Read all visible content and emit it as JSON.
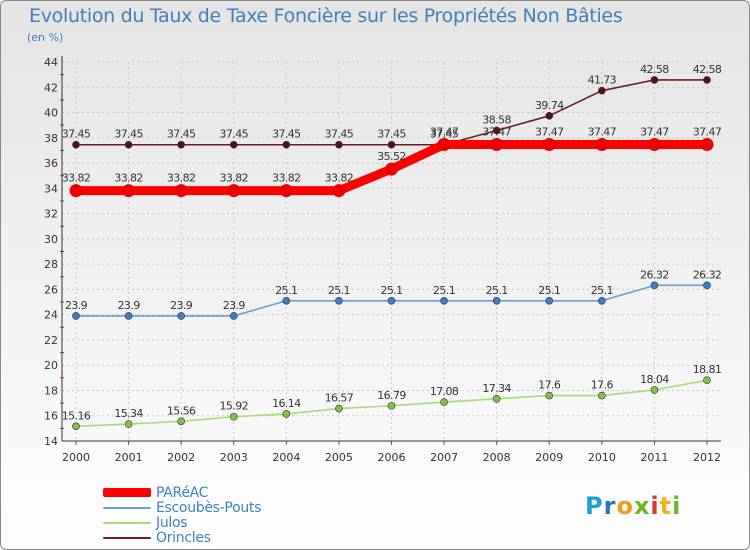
{
  "chart_data": {
    "type": "line",
    "title": "Evolution du Taux de Taxe Foncière sur les Propriétés Non Bâties",
    "ylabel": "(en %)",
    "xlabel": "",
    "categories": [
      "2000",
      "2001",
      "2002",
      "2003",
      "2004",
      "2005",
      "2006",
      "2007",
      "2008",
      "2009",
      "2010",
      "2011",
      "2012"
    ],
    "ylim": [
      14,
      44
    ],
    "yticks": [
      14,
      16,
      18,
      20,
      22,
      24,
      26,
      28,
      30,
      32,
      34,
      36,
      38,
      40,
      42,
      44
    ],
    "grid": true,
    "legend_position": "bottom-left",
    "series": [
      {
        "name": "Orincles",
        "color": "#6e1e22",
        "marker": "#5a1014",
        "values": [
          37.45,
          37.45,
          37.45,
          37.45,
          37.45,
          37.45,
          37.45,
          37.45,
          38.58,
          39.74,
          41.73,
          42.58,
          42.58
        ],
        "labels": [
          "37.45",
          "37.45",
          "37.45",
          "37.45",
          "37.45",
          "37.45",
          "37.45",
          "37.45",
          "38.58",
          "39.74",
          "41.73",
          "42.58",
          "42.58"
        ]
      },
      {
        "name": "PARéAC",
        "color": "#ff0000",
        "marker": "#ee0000",
        "values": [
          33.82,
          33.82,
          33.82,
          33.82,
          33.82,
          33.82,
          35.52,
          37.47,
          37.47,
          37.47,
          37.47,
          37.47,
          37.47
        ],
        "labels": [
          "33.82",
          "33.82",
          "33.82",
          "33.82",
          "33.82",
          "33.82",
          "35.52",
          "37.47",
          "37.47",
          "37.47",
          "37.47",
          "37.47",
          "37.47"
        ]
      },
      {
        "name": "Escoubès-Pouts",
        "color": "#6e9fcf",
        "marker": "#3a7fc4",
        "values": [
          23.9,
          23.9,
          23.9,
          23.9,
          25.1,
          25.1,
          25.1,
          25.1,
          25.1,
          25.1,
          25.1,
          26.32,
          26.32
        ],
        "labels": [
          "23.9",
          "23.9",
          "23.9",
          "23.9",
          "25.1",
          "25.1",
          "25.1",
          "25.1",
          "25.1",
          "25.1",
          "25.1",
          "26.32",
          "26.32"
        ]
      },
      {
        "name": "Julos",
        "color": "#a6dc78",
        "marker": "#7cc442",
        "values": [
          15.16,
          15.34,
          15.56,
          15.92,
          16.14,
          16.57,
          16.79,
          17.08,
          17.34,
          17.6,
          17.6,
          18.04,
          18.81
        ],
        "labels": [
          "15.16",
          "15.34",
          "15.56",
          "15.92",
          "16.14",
          "16.57",
          "16.79",
          "17.08",
          "17.34",
          "17.6",
          "17.6",
          "18.04",
          "18.81"
        ]
      }
    ],
    "legend": [
      "PARéAC",
      "Escoubès-Pouts",
      "Julos",
      "Orincles"
    ]
  },
  "brand": {
    "letters": [
      "P",
      "r",
      "o",
      "x",
      "i",
      "t",
      "i"
    ],
    "colors": [
      "#1aa0d8",
      "#2870c8",
      "#f29a1c",
      "#6cb42c",
      "#d8362a",
      "#f2b41c",
      "#6cb42c"
    ]
  }
}
